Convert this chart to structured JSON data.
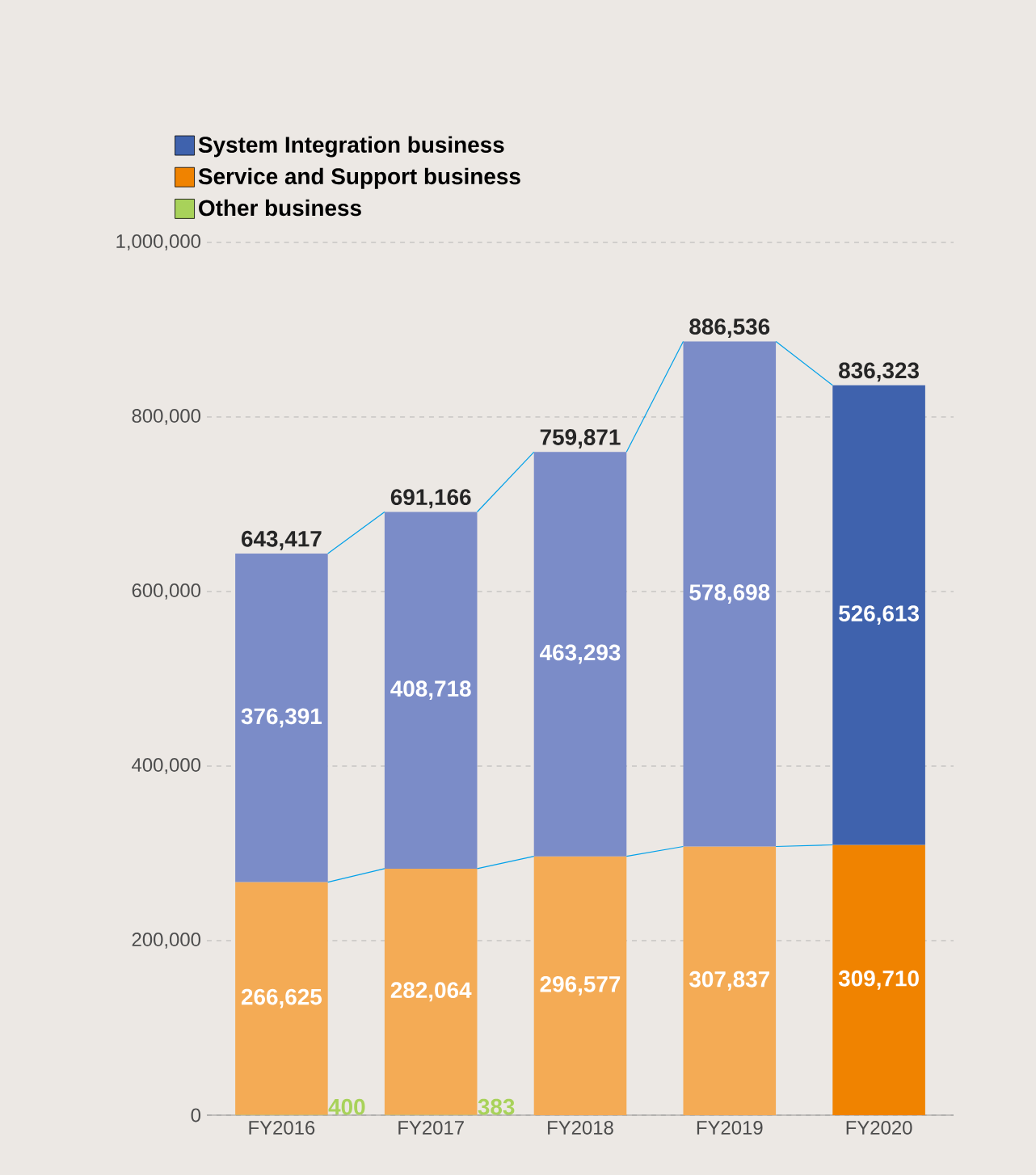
{
  "chart_data": {
    "type": "bar",
    "stacked": true,
    "categories": [
      "FY2016",
      "FY2017",
      "FY2018",
      "FY2019",
      "FY2020"
    ],
    "series": [
      {
        "name": "Other business",
        "color": "#a8d25a",
        "colors": [
          "#a8d25a",
          "#a8d25a",
          "#a8d25a",
          "#a8d25a",
          "#a8d25a"
        ],
        "values": [
          400,
          383,
          null,
          null,
          null
        ],
        "value_labels": [
          "400",
          "383",
          null,
          null,
          null
        ]
      },
      {
        "name": "Service and Support business",
        "color": "#f08300",
        "colors": [
          "#f4ab55",
          "#f4ab55",
          "#f4ab55",
          "#f4ab55",
          "#f08300"
        ],
        "values": [
          266625,
          282064,
          296577,
          307837,
          309710
        ],
        "value_labels": [
          "266,625",
          "282,064",
          "296,577",
          "307,837",
          "309,710"
        ]
      },
      {
        "name": "System Integration business",
        "color": "#3f62ad",
        "colors": [
          "#7b8cc8",
          "#7b8cc8",
          "#7b8cc8",
          "#7b8cc8",
          "#3f62ad"
        ],
        "values": [
          376391,
          408718,
          463293,
          578698,
          526613
        ],
        "value_labels": [
          "376,391",
          "408,718",
          "463,293",
          "578,698",
          "526,613"
        ]
      }
    ],
    "totals": [
      "643,417",
      "691,166",
      "759,871",
      "886,536",
      "836,323"
    ],
    "ylim": [
      0,
      1000000
    ],
    "yticks": [
      {
        "value": 0,
        "label": "0"
      },
      {
        "value": 200000,
        "label": "200,000"
      },
      {
        "value": 400000,
        "label": "400,000"
      },
      {
        "value": 600000,
        "label": "600,000"
      },
      {
        "value": 800000,
        "label": "800,000"
      },
      {
        "value": 1000000,
        "label": "1,000,000"
      }
    ],
    "grid": "y",
    "legend": "top left"
  }
}
